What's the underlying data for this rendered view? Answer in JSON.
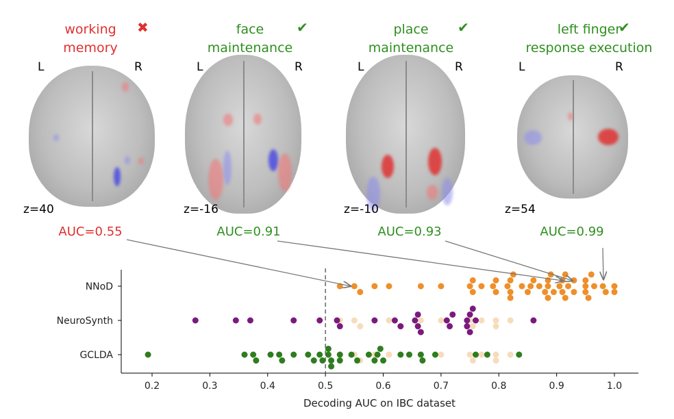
{
  "colors": {
    "fail": "#e03030",
    "pass": "#2f8f1f",
    "nnod": "#ee8f2a",
    "neurosynth": "#7a1a7e",
    "gclda": "#2e7d1e",
    "faded": "#f7dcbb"
  },
  "panels": [
    {
      "title_lines": [
        "working",
        "memory"
      ],
      "status": "fail",
      "status_icon": "cross-icon",
      "mark": "✖",
      "L": "L",
      "R": "R",
      "z": "z=40",
      "auc": "AUC=0.55"
    },
    {
      "title_lines": [
        "face",
        "maintenance"
      ],
      "status": "pass",
      "status_icon": "check-icon",
      "mark": "✔",
      "L": "L",
      "R": "R",
      "z": "z=-16",
      "auc": "AUC=0.91"
    },
    {
      "title_lines": [
        "place",
        "maintenance"
      ],
      "status": "pass",
      "status_icon": "check-icon",
      "mark": "✔",
      "L": "L",
      "R": "R",
      "z": "z=-10",
      "auc": "AUC=0.93"
    },
    {
      "title_lines": [
        "left finger",
        "response execution"
      ],
      "status": "pass",
      "status_icon": "check-icon",
      "mark": "✔",
      "L": "L",
      "R": "R",
      "z": "z=54",
      "auc": "AUC=0.99"
    }
  ],
  "chart_data": {
    "type": "scatter",
    "subtype": "swarm",
    "xlabel": "Decoding AUC on IBC dataset",
    "xlim": [
      0.15,
      1.04
    ],
    "xticks": [
      "0.2",
      "0.3",
      "0.4",
      "0.5",
      "0.6",
      "0.7",
      "0.8",
      "0.9",
      "1.0"
    ],
    "reference_line": 0.5,
    "categories": [
      "NNoD",
      "NeuroSynth",
      "GCLDA"
    ],
    "series": [
      {
        "name": "NNoD",
        "values": [
          0.525,
          0.55,
          0.56,
          0.585,
          0.61,
          0.665,
          0.7,
          0.75,
          0.755,
          0.755,
          0.77,
          0.79,
          0.795,
          0.795,
          0.815,
          0.82,
          0.82,
          0.82,
          0.825,
          0.84,
          0.85,
          0.855,
          0.86,
          0.87,
          0.88,
          0.885,
          0.885,
          0.885,
          0.89,
          0.895,
          0.905,
          0.91,
          0.91,
          0.915,
          0.915,
          0.92,
          0.93,
          0.93,
          0.95,
          0.95,
          0.95,
          0.955,
          0.96,
          0.965,
          0.98,
          0.985,
          1.0,
          1.0
        ]
      },
      {
        "name": "NeuroSynth",
        "values": [
          0.275,
          0.345,
          0.37,
          0.445,
          0.49,
          0.52,
          0.525,
          0.585,
          0.62,
          0.63,
          0.655,
          0.66,
          0.66,
          0.665,
          0.71,
          0.715,
          0.72,
          0.745,
          0.745,
          0.75,
          0.75,
          0.755,
          0.76,
          0.86
        ]
      },
      {
        "name": "GCLDA",
        "values": [
          0.193,
          0.36,
          0.375,
          0.38,
          0.405,
          0.42,
          0.425,
          0.445,
          0.47,
          0.48,
          0.49,
          0.495,
          0.505,
          0.505,
          0.51,
          0.51,
          0.525,
          0.525,
          0.545,
          0.555,
          0.575,
          0.585,
          0.59,
          0.595,
          0.6,
          0.63,
          0.645,
          0.665,
          0.668,
          0.69,
          0.76,
          0.78,
          0.835
        ]
      }
    ],
    "faded_reference_values": [
      0.525,
      0.55,
      0.56,
      0.585,
      0.61,
      0.665,
      0.7,
      0.75,
      0.755,
      0.77,
      0.795,
      0.795,
      0.82
    ],
    "annotations": [
      {
        "text": "AUC=0.55",
        "x": 0.55
      },
      {
        "text": "AUC=0.91",
        "x": 0.91
      },
      {
        "text": "AUC=0.93",
        "x": 0.93
      },
      {
        "text": "AUC=0.99",
        "x": 0.99
      }
    ]
  }
}
